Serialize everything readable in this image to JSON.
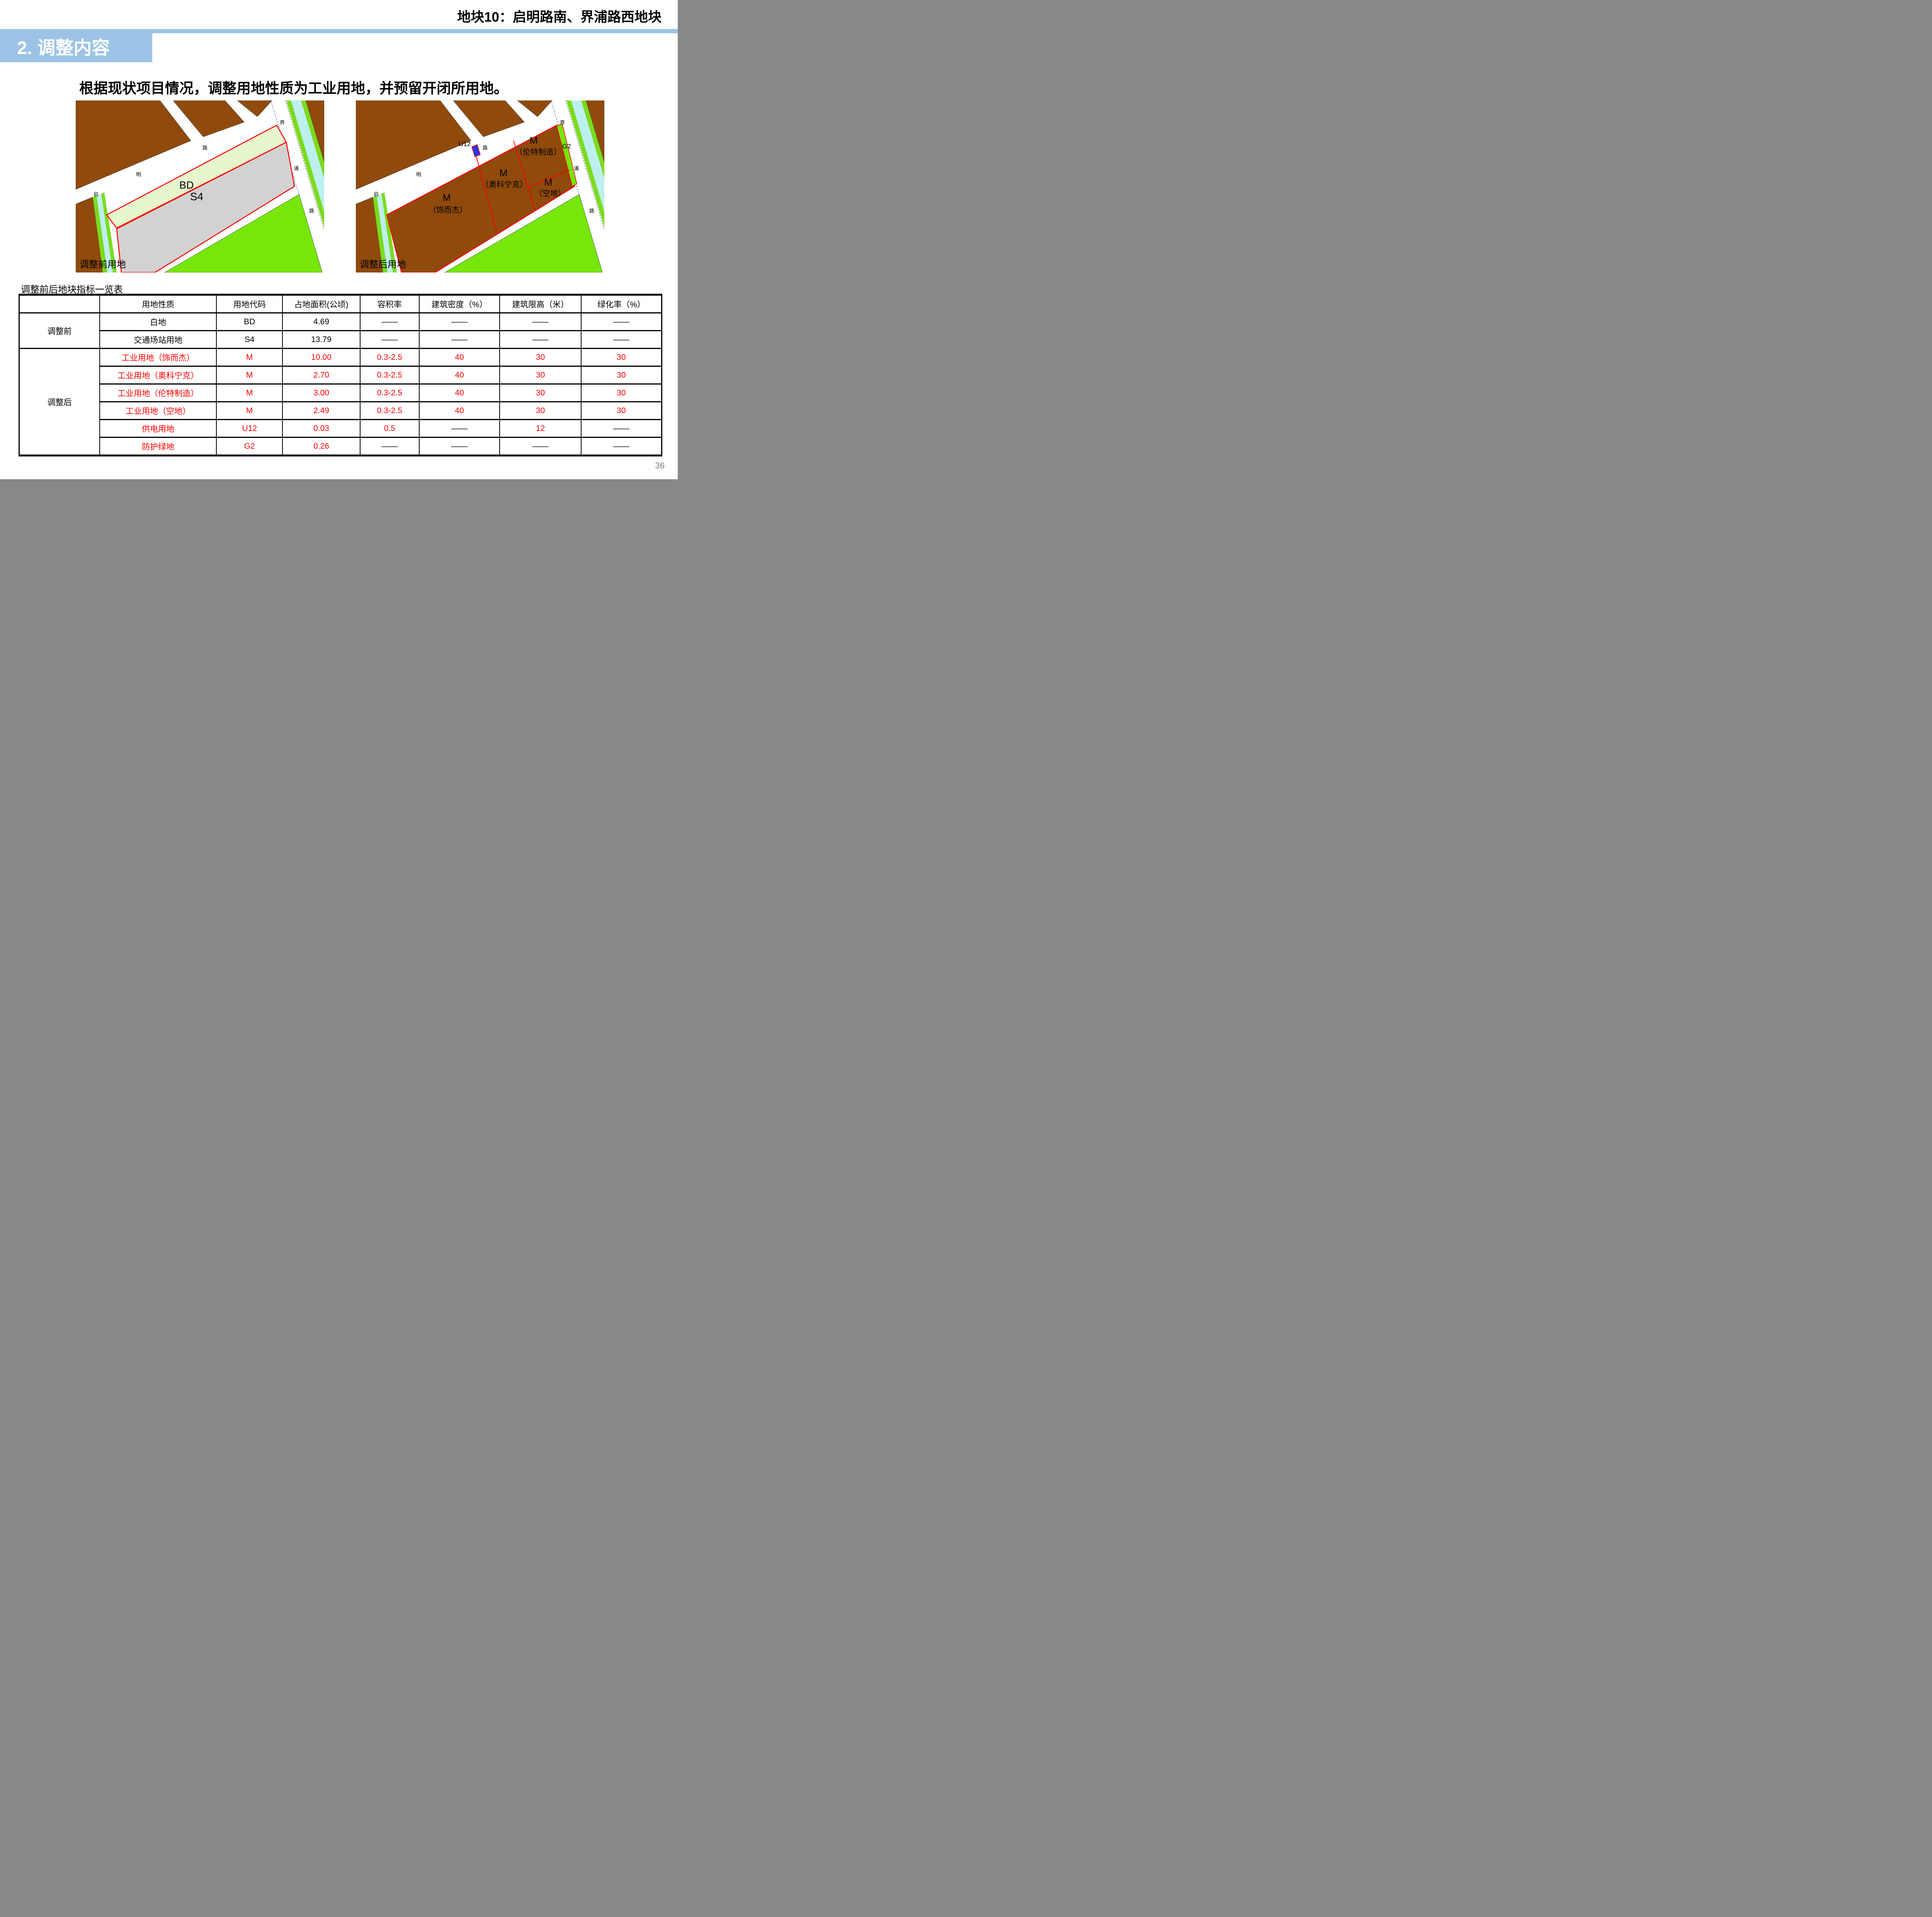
{
  "slide": {
    "plot_title": "地块10：启明路南、界浦路西地块",
    "section_title": "2. 调整内容",
    "intro": "根据现状项目情况，调整用地性质为工业用地，并预留开闭所用地。",
    "page_number": "36"
  },
  "colors": {
    "accent": "#9CC3E5",
    "parcel_brown": "#8F4A0C",
    "bright_green": "#76E60B",
    "pale_green": "#E6F6CD",
    "gray_parcel": "#D2D2D2",
    "water_cyan": "#BDEFEF",
    "canal_green": "#7BDB1E",
    "boundary_red": "#FF0000",
    "u12_blue": "#2438E0",
    "page_number_gray": "#7F7F7F"
  },
  "maps": {
    "before": {
      "caption": "调整前用地",
      "road_labels": {
        "qi": "启",
        "ming": "明",
        "lu": "路",
        "jie": "界",
        "pu": "浦",
        "lu2": "路"
      },
      "parcels": {
        "bd": "BD",
        "s4": "S4"
      }
    },
    "after": {
      "caption": "调整后用地",
      "road_labels": {
        "qi": "启",
        "ming": "明",
        "lu": "路",
        "jie": "界",
        "pu": "浦",
        "lu2": "路"
      },
      "parcels": {
        "u12": "U12",
        "g2": "G2",
        "m_lunte": "M",
        "m_lunte_sub": "（伦特制造）",
        "m_aoke": "M",
        "m_aoke_sub": "（奥科宁克）",
        "m_kongdi": "M",
        "m_kongdi_sub": "（空地）",
        "m_shierjie": "M",
        "m_shierjie_sub": "（饰而杰）"
      }
    }
  },
  "table": {
    "title": "调整前后地块指标一览表",
    "columns": [
      "",
      "用地性质",
      "用地代码",
      "占地面积(公顷)",
      "容积率",
      "建筑密度（%）",
      "建筑限高（米）",
      "绿化率（%）"
    ],
    "col_widths_pct": [
      12.55,
      18.15,
      10.3,
      12.05,
      9.2,
      12.55,
      12.65,
      12.55
    ],
    "sections": [
      {
        "label": "调整前",
        "rows": [
          {
            "cells": [
              "白地",
              "BD",
              "4.69",
              "——",
              "——",
              "——",
              "——"
            ],
            "red": [
              false,
              false,
              false,
              false,
              false,
              false,
              false
            ]
          },
          {
            "cells": [
              "交通场站用地",
              "S4",
              "13.79",
              "——",
              "——",
              "——",
              "——"
            ],
            "red": [
              false,
              false,
              false,
              false,
              false,
              false,
              false
            ]
          }
        ]
      },
      {
        "label": "调整后",
        "rows": [
          {
            "cells": [
              "工业用地（饰而杰）",
              "M",
              "10.00",
              "0.3-2.5",
              "40",
              "30",
              "30"
            ],
            "red": [
              true,
              true,
              true,
              true,
              true,
              true,
              true
            ]
          },
          {
            "cells": [
              "工业用地（奥科宁克）",
              "M",
              "2.70",
              "0.3-2.5",
              "40",
              "30",
              "30"
            ],
            "red": [
              true,
              true,
              true,
              true,
              true,
              true,
              true
            ]
          },
          {
            "cells": [
              "工业用地（伦特制造）",
              "M",
              "3.00",
              "0.3-2.5",
              "40",
              "30",
              "30"
            ],
            "red": [
              true,
              true,
              true,
              true,
              true,
              true,
              true
            ]
          },
          {
            "cells": [
              "工业用地（空地）",
              "M",
              "2.49",
              "0.3-2.5",
              "40",
              "30",
              "30"
            ],
            "red": [
              true,
              true,
              true,
              true,
              true,
              true,
              true
            ]
          },
          {
            "cells": [
              "供电用地",
              "U12",
              "0.03",
              "0.5",
              "——",
              "12",
              "——"
            ],
            "red": [
              true,
              true,
              true,
              true,
              false,
              true,
              false
            ]
          },
          {
            "cells": [
              "防护绿地",
              "G2",
              "0.26",
              "——",
              "——",
              "——",
              "——"
            ],
            "red": [
              true,
              true,
              true,
              false,
              false,
              false,
              false
            ]
          }
        ]
      }
    ]
  }
}
